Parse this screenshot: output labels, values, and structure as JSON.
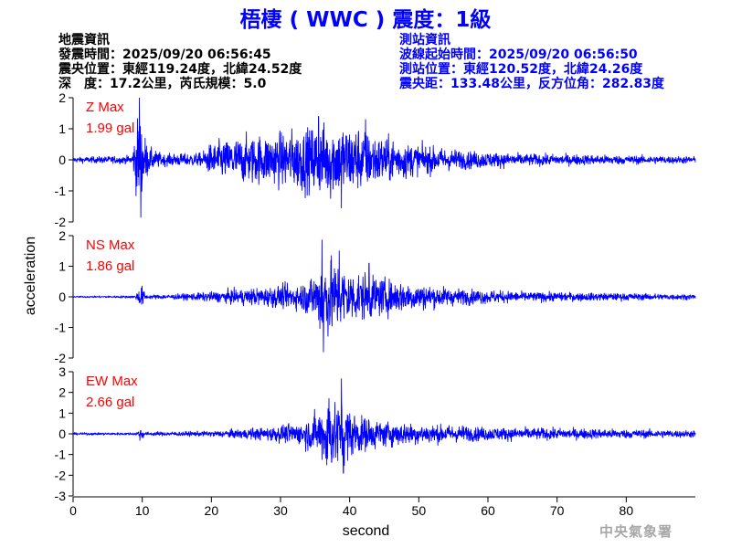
{
  "header": {
    "title": "梧棲 ( WWC ) 震度：1級",
    "quake_info": [
      "地震資訊",
      "發震時間：2025/09/20 06:56:45",
      "震央位置：東經119.24度，北緯24.52度",
      "深　度：17.2公里，芮氏規模：5.0"
    ],
    "station_info": [
      "測站資訊",
      "波線起始時間：2025/09/20 06:56:50",
      "測站位置：東經120.52度，北緯24.26度",
      "震央距：133.48公里，反方位角：282.83度"
    ]
  },
  "footer": {
    "agency": "中央氣象署"
  },
  "colors": {
    "trace": "#0000ff",
    "max_label": "#ff0000",
    "axis": "#000000",
    "title": "#0000ff"
  },
  "chart_data": {
    "type": "line",
    "xlabel": "second",
    "ylabel": "acceleration",
    "xlim": [
      0,
      90
    ],
    "x_ticks": [
      0,
      10,
      20,
      30,
      40,
      50,
      60,
      70,
      80
    ],
    "grid": false,
    "panels": [
      {
        "name": "Z",
        "max_label": "Z Max",
        "max_value": "1.99 gal",
        "ylim": [
          -2,
          2
        ],
        "y_ticks": [
          -2,
          -1,
          0,
          1,
          2
        ],
        "envelope": [
          [
            0,
            0.08
          ],
          [
            8.5,
            0.12
          ],
          [
            9.5,
            1.5
          ],
          [
            10,
            1.0
          ],
          [
            11,
            0.35
          ],
          [
            13,
            0.18
          ],
          [
            18.5,
            0.2
          ],
          [
            20,
            0.5
          ],
          [
            25,
            0.7
          ],
          [
            30,
            0.8
          ],
          [
            34,
            1.0
          ],
          [
            37,
            1.15
          ],
          [
            41,
            1.0
          ],
          [
            44,
            0.75
          ],
          [
            50,
            0.45
          ],
          [
            55,
            0.3
          ],
          [
            65,
            0.18
          ],
          [
            90,
            0.1
          ]
        ],
        "peaks": [
          [
            9.6,
            1.99
          ],
          [
            9.8,
            -1.85
          ],
          [
            35.5,
            1.4
          ],
          [
            38.8,
            -1.55
          ],
          [
            42.3,
            1.3
          ]
        ]
      },
      {
        "name": "NS",
        "max_label": "NS Max",
        "max_value": "1.86 gal",
        "ylim": [
          -2,
          2
        ],
        "y_ticks": [
          -2,
          -1,
          0,
          1,
          2
        ],
        "envelope": [
          [
            0,
            0.02
          ],
          [
            9,
            0.04
          ],
          [
            9.8,
            0.4
          ],
          [
            10.6,
            0.06
          ],
          [
            15,
            0.08
          ],
          [
            20,
            0.15
          ],
          [
            28,
            0.3
          ],
          [
            33,
            0.4
          ],
          [
            35.3,
            0.8
          ],
          [
            36,
            1.4
          ],
          [
            37,
            1.2
          ],
          [
            40,
            0.8
          ],
          [
            45,
            0.55
          ],
          [
            50,
            0.4
          ],
          [
            55,
            0.25
          ],
          [
            65,
            0.15
          ],
          [
            90,
            0.08
          ]
        ],
        "peaks": [
          [
            36.0,
            1.86
          ],
          [
            36.2,
            -1.8
          ],
          [
            38.5,
            1.5
          ],
          [
            42.8,
            1.1
          ]
        ]
      },
      {
        "name": "EW",
        "max_label": "EW Max",
        "max_value": "2.66 gal",
        "ylim": [
          -3,
          3
        ],
        "y_ticks": [
          -3,
          -2,
          -1,
          0,
          1,
          2,
          3
        ],
        "envelope": [
          [
            0,
            0.05
          ],
          [
            9,
            0.06
          ],
          [
            9.8,
            0.3
          ],
          [
            10.6,
            0.08
          ],
          [
            20,
            0.12
          ],
          [
            28,
            0.3
          ],
          [
            33,
            0.5
          ],
          [
            35.5,
            1.0
          ],
          [
            36.5,
            1.5
          ],
          [
            38.5,
            1.6
          ],
          [
            40.5,
            1.0
          ],
          [
            44,
            0.6
          ],
          [
            50,
            0.45
          ],
          [
            60,
            0.3
          ],
          [
            70,
            0.25
          ],
          [
            90,
            0.15
          ]
        ],
        "peaks": [
          [
            38.8,
            2.66
          ],
          [
            39.1,
            -1.9
          ],
          [
            37.0,
            1.7
          ],
          [
            36.7,
            -1.5
          ]
        ]
      }
    ]
  }
}
